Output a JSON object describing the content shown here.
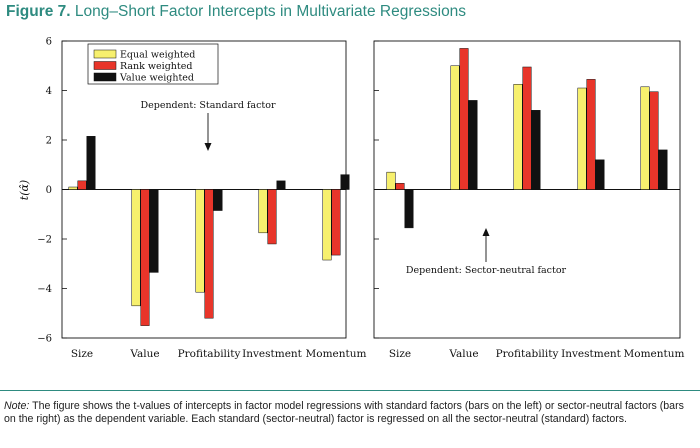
{
  "figure": {
    "label": "Figure 7.",
    "title": "Long–Short Factor Intercepts in Multivariate Regressions"
  },
  "note": {
    "label": "Note:",
    "text": "The figure shows the t-values of intercepts in factor model regressions with standard factors (bars on the left) or sector-neutral factors (bars on the right) as the dependent variable. Each standard (sector-neutral) factor is regressed on all the sector-neutral (standard) factors."
  },
  "colors": {
    "equal": "#f7f06e",
    "rank": "#e8352a",
    "value": "#111111",
    "title": "#2e8b80"
  },
  "chart_data": [
    {
      "type": "bar",
      "panel": "left",
      "categories": [
        "Size",
        "Value",
        "Profitability",
        "Investment",
        "Momentum"
      ],
      "series": [
        {
          "name": "Equal weighted",
          "values": [
            0.1,
            -4.7,
            -4.15,
            -1.75,
            -2.85
          ]
        },
        {
          "name": "Rank weighted",
          "values": [
            0.35,
            -5.5,
            -5.2,
            -2.2,
            -2.65
          ]
        },
        {
          "name": "Value weighted",
          "values": [
            2.15,
            -3.35,
            -0.85,
            0.35,
            0.6
          ]
        }
      ],
      "ylabel": "t(α̂)",
      "ylim": [
        -6,
        6
      ],
      "yticks": [
        "6",
        "4",
        "2",
        "0",
        "−2",
        "−4",
        "−6"
      ],
      "annotation": "Dependent: Standard factor",
      "legend": "top-left"
    },
    {
      "type": "bar",
      "panel": "right",
      "categories": [
        "Size",
        "Value",
        "Profitability",
        "Investment",
        "Momentum"
      ],
      "series": [
        {
          "name": "Equal weighted",
          "values": [
            0.7,
            5.0,
            4.25,
            4.1,
            4.15
          ]
        },
        {
          "name": "Rank weighted",
          "values": [
            0.25,
            5.7,
            4.95,
            4.45,
            3.95
          ]
        },
        {
          "name": "Value weighted",
          "values": [
            -1.55,
            3.6,
            3.2,
            1.2,
            1.6
          ]
        }
      ],
      "ylim": [
        -6,
        6
      ],
      "annotation": "Dependent: Sector-neutral factor"
    }
  ]
}
